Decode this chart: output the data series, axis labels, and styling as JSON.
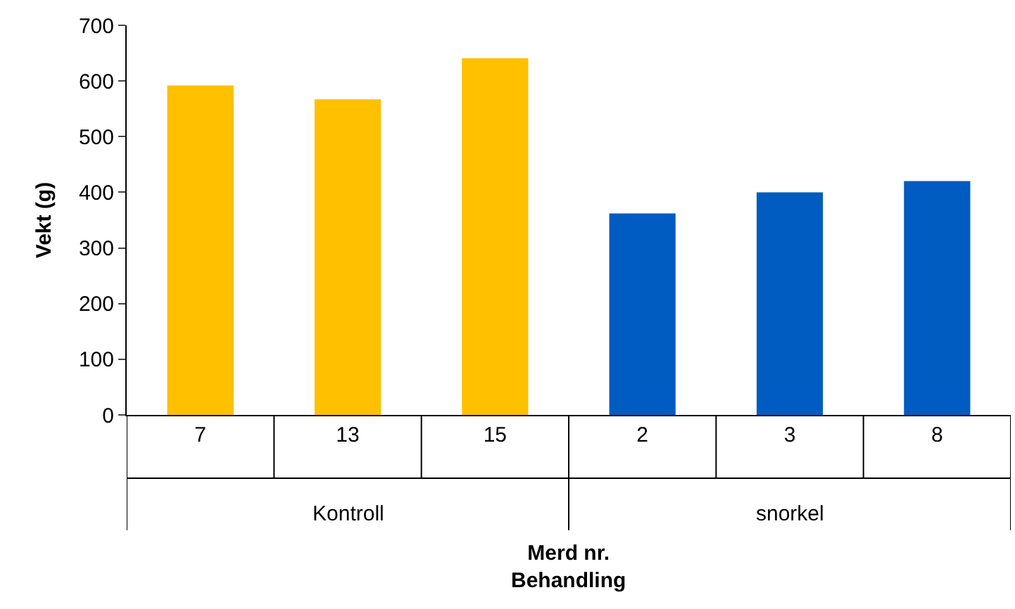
{
  "chart_data": {
    "type": "bar",
    "xlabel": "Merd nr.\nBehandling",
    "ylabel": "Vekt (g)",
    "categories": [
      "7",
      "13",
      "15",
      "2",
      "3",
      "8"
    ],
    "values": [
      592,
      567,
      641,
      362,
      400,
      420
    ],
    "colors": [
      "#ffc000",
      "#ffc000",
      "#ffc000",
      "#005cc0",
      "#005cc0",
      "#005cc0"
    ],
    "ylim": [
      0,
      700
    ],
    "yticks": [
      0,
      100,
      200,
      300,
      400,
      500,
      600,
      700
    ],
    "annotations": [
      "Kontroll",
      "snorkel"
    ]
  }
}
